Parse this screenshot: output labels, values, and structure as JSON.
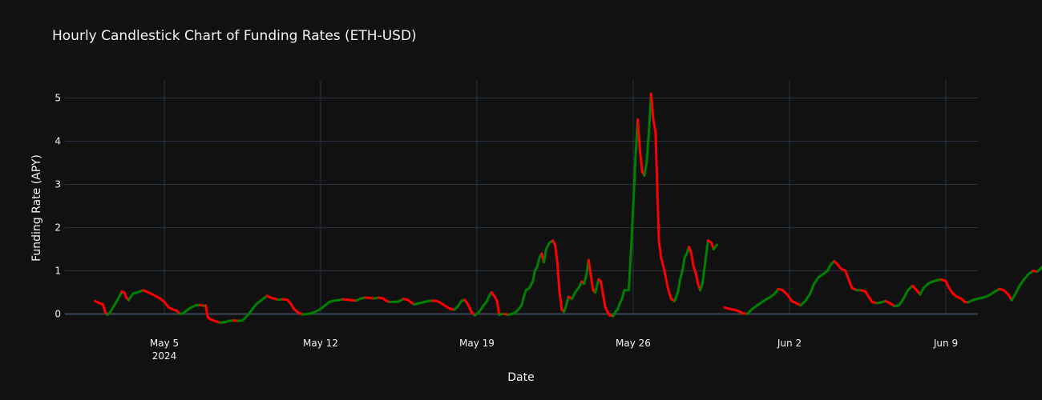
{
  "chart_data": {
    "type": "candlestick",
    "title": "Hourly Candlestick Chart of Funding Rates (ETH-USD)",
    "xlabel": "Date",
    "ylabel": "Funding Rate (APY)",
    "x_tick_labels": [
      "May 5",
      "May 12",
      "May 19",
      "May 26",
      "Jun 2",
      "Jun 9"
    ],
    "x_tick_days": [
      5,
      12,
      19,
      26,
      33,
      40
    ],
    "x_sub_label": "2024",
    "y_ticks": [
      0,
      1,
      2,
      3,
      4,
      5
    ],
    "xlim_days": [
      1.9,
      41.8
    ],
    "ylim": [
      -0.2,
      5.35
    ],
    "grid": true,
    "colors": {
      "increasing": "#008000",
      "decreasing": "#ff0000",
      "background": "#111111",
      "grid": "#283442"
    },
    "series": [
      {
        "points": [
          [
            1.9,
            0.3
          ],
          [
            2.1,
            0.25
          ],
          [
            2.25,
            0.22
          ],
          [
            2.35,
            0.05
          ],
          [
            2.45,
            -0.02
          ],
          [
            2.55,
            0.02
          ],
          [
            2.7,
            0.15
          ],
          [
            2.85,
            0.28
          ],
          [
            3.0,
            0.42
          ],
          [
            3.1,
            0.52
          ],
          [
            3.2,
            0.5
          ],
          [
            3.3,
            0.38
          ],
          [
            3.4,
            0.32
          ],
          [
            3.5,
            0.4
          ],
          [
            3.6,
            0.47
          ],
          [
            3.8,
            0.5
          ],
          [
            3.95,
            0.53
          ],
          [
            4.05,
            0.55
          ],
          [
            4.2,
            0.52
          ],
          [
            4.4,
            0.47
          ],
          [
            4.6,
            0.42
          ],
          [
            4.8,
            0.36
          ],
          [
            5.0,
            0.28
          ],
          [
            5.2,
            0.15
          ],
          [
            5.4,
            0.1
          ],
          [
            5.55,
            0.08
          ],
          [
            5.7,
            0.0
          ],
          [
            5.85,
            0.02
          ],
          [
            6.0,
            0.08
          ],
          [
            6.2,
            0.15
          ],
          [
            6.4,
            0.2
          ],
          [
            6.6,
            0.21
          ],
          [
            6.75,
            0.19
          ],
          [
            6.85,
            0.2
          ],
          [
            6.95,
            -0.08
          ],
          [
            7.1,
            -0.13
          ],
          [
            7.3,
            -0.17
          ],
          [
            7.5,
            -0.2
          ],
          [
            7.7,
            -0.19
          ],
          [
            7.9,
            -0.16
          ],
          [
            8.1,
            -0.15
          ],
          [
            8.3,
            -0.16
          ],
          [
            8.5,
            -0.15
          ],
          [
            8.7,
            -0.05
          ],
          [
            8.9,
            0.08
          ],
          [
            9.1,
            0.22
          ],
          [
            9.3,
            0.3
          ],
          [
            9.5,
            0.38
          ],
          [
            9.6,
            0.42
          ],
          [
            9.75,
            0.38
          ],
          [
            9.9,
            0.36
          ],
          [
            10.1,
            0.33
          ],
          [
            10.3,
            0.34
          ],
          [
            10.5,
            0.33
          ],
          [
            10.65,
            0.25
          ],
          [
            10.8,
            0.12
          ],
          [
            11.0,
            0.03
          ],
          [
            11.2,
            -0.01
          ],
          [
            11.4,
            0.0
          ],
          [
            11.6,
            0.02
          ],
          [
            11.8,
            0.06
          ],
          [
            12.0,
            0.12
          ],
          [
            12.2,
            0.2
          ],
          [
            12.4,
            0.28
          ],
          [
            12.6,
            0.31
          ],
          [
            12.8,
            0.32
          ],
          [
            13.0,
            0.34
          ],
          [
            13.2,
            0.33
          ],
          [
            13.4,
            0.32
          ],
          [
            13.6,
            0.31
          ],
          [
            13.8,
            0.36
          ],
          [
            14.0,
            0.38
          ],
          [
            14.2,
            0.37
          ],
          [
            14.4,
            0.36
          ],
          [
            14.6,
            0.38
          ],
          [
            14.8,
            0.36
          ],
          [
            14.95,
            0.3
          ],
          [
            15.1,
            0.28
          ],
          [
            15.3,
            0.28
          ],
          [
            15.5,
            0.29
          ],
          [
            15.7,
            0.35
          ],
          [
            15.9,
            0.33
          ],
          [
            16.05,
            0.27
          ],
          [
            16.2,
            0.22
          ],
          [
            16.4,
            0.25
          ],
          [
            16.6,
            0.27
          ],
          [
            16.8,
            0.3
          ],
          [
            17.0,
            0.31
          ],
          [
            17.2,
            0.3
          ],
          [
            17.4,
            0.25
          ],
          [
            17.6,
            0.18
          ],
          [
            17.8,
            0.12
          ],
          [
            18.0,
            0.1
          ],
          [
            18.15,
            0.18
          ],
          [
            18.3,
            0.3
          ],
          [
            18.45,
            0.33
          ],
          [
            18.6,
            0.22
          ],
          [
            18.75,
            0.05
          ],
          [
            18.9,
            -0.03
          ],
          [
            19.05,
            0.02
          ],
          [
            19.2,
            0.12
          ],
          [
            19.3,
            0.2
          ],
          [
            19.45,
            0.3
          ],
          [
            19.55,
            0.42
          ],
          [
            19.65,
            0.5
          ],
          [
            19.8,
            0.4
          ],
          [
            19.9,
            0.3
          ],
          [
            20.0,
            -0.02
          ],
          [
            20.1,
            0.0
          ],
          [
            20.25,
            0.0
          ],
          [
            20.4,
            -0.02
          ],
          [
            20.55,
            0.0
          ],
          [
            20.7,
            0.03
          ],
          [
            20.85,
            0.1
          ],
          [
            21.0,
            0.2
          ],
          [
            21.1,
            0.4
          ],
          [
            21.2,
            0.55
          ],
          [
            21.35,
            0.6
          ],
          [
            21.5,
            0.75
          ],
          [
            21.6,
            1.0
          ],
          [
            21.7,
            1.1
          ],
          [
            21.8,
            1.3
          ],
          [
            21.9,
            1.4
          ],
          [
            22.0,
            1.2
          ],
          [
            22.1,
            1.5
          ],
          [
            22.25,
            1.65
          ],
          [
            22.4,
            1.7
          ],
          [
            22.5,
            1.6
          ],
          [
            22.6,
            1.2
          ],
          [
            22.7,
            0.5
          ],
          [
            22.8,
            0.1
          ],
          [
            22.9,
            0.05
          ],
          [
            23.0,
            0.2
          ],
          [
            23.1,
            0.4
          ],
          [
            23.25,
            0.35
          ],
          [
            23.4,
            0.5
          ],
          [
            23.55,
            0.6
          ],
          [
            23.7,
            0.75
          ],
          [
            23.8,
            0.7
          ],
          [
            23.9,
            0.9
          ],
          [
            24.0,
            1.25
          ],
          [
            24.1,
            0.9
          ],
          [
            24.2,
            0.55
          ],
          [
            24.3,
            0.5
          ],
          [
            24.45,
            0.8
          ],
          [
            24.55,
            0.75
          ],
          [
            24.65,
            0.45
          ],
          [
            24.75,
            0.15
          ],
          [
            24.85,
            0.05
          ],
          [
            24.95,
            -0.03
          ],
          [
            25.1,
            -0.05
          ],
          [
            25.2,
            0.05
          ],
          [
            25.3,
            0.1
          ],
          [
            25.4,
            0.25
          ],
          [
            25.5,
            0.35
          ],
          [
            25.6,
            0.55
          ],
          [
            25.8,
            0.55
          ],
          [
            25.9,
            1.45
          ],
          [
            26.0,
            2.5
          ],
          [
            26.1,
            3.6
          ],
          [
            26.2,
            4.5
          ],
          [
            26.3,
            3.8
          ],
          [
            26.4,
            3.3
          ],
          [
            26.5,
            3.2
          ],
          [
            26.6,
            3.5
          ],
          [
            26.7,
            4.2
          ],
          [
            26.8,
            5.1
          ],
          [
            26.9,
            4.5
          ],
          [
            27.0,
            4.2
          ],
          [
            27.15,
            1.7
          ],
          [
            27.25,
            1.3
          ],
          [
            27.4,
            1.0
          ],
          [
            27.55,
            0.6
          ],
          [
            27.7,
            0.35
          ],
          [
            27.85,
            0.3
          ],
          [
            28.0,
            0.5
          ],
          [
            28.1,
            0.8
          ],
          [
            28.2,
            1.0
          ],
          [
            28.3,
            1.3
          ],
          [
            28.4,
            1.4
          ],
          [
            28.5,
            1.55
          ],
          [
            28.6,
            1.4
          ],
          [
            28.7,
            1.1
          ],
          [
            28.8,
            0.95
          ],
          [
            28.9,
            0.7
          ],
          [
            29.0,
            0.55
          ],
          [
            29.1,
            0.7
          ],
          [
            29.15,
            0.9
          ],
          [
            29.35,
            1.7
          ],
          [
            29.5,
            1.65
          ],
          [
            29.6,
            1.5
          ],
          [
            29.75,
            1.6
          ],
          [
            30.1,
            0.15
          ],
          [
            30.3,
            0.12
          ],
          [
            30.5,
            0.1
          ],
          [
            30.7,
            0.07
          ],
          [
            30.9,
            0.02
          ],
          [
            31.1,
            0.0
          ],
          [
            31.3,
            0.1
          ],
          [
            31.5,
            0.18
          ],
          [
            31.7,
            0.25
          ],
          [
            31.9,
            0.32
          ],
          [
            32.1,
            0.38
          ],
          [
            32.3,
            0.45
          ],
          [
            32.5,
            0.58
          ],
          [
            32.7,
            0.55
          ],
          [
            32.9,
            0.45
          ],
          [
            33.1,
            0.3
          ],
          [
            33.3,
            0.25
          ],
          [
            33.5,
            0.2
          ],
          [
            33.7,
            0.3
          ],
          [
            33.9,
            0.45
          ],
          [
            34.1,
            0.7
          ],
          [
            34.3,
            0.85
          ],
          [
            34.5,
            0.92
          ],
          [
            34.7,
            1.0
          ],
          [
            34.85,
            1.15
          ],
          [
            35.0,
            1.22
          ],
          [
            35.15,
            1.15
          ],
          [
            35.3,
            1.05
          ],
          [
            35.5,
            1.0
          ],
          [
            35.65,
            0.8
          ],
          [
            35.8,
            0.6
          ],
          [
            36.0,
            0.55
          ],
          [
            36.2,
            0.55
          ],
          [
            36.4,
            0.52
          ],
          [
            36.55,
            0.4
          ],
          [
            36.7,
            0.28
          ],
          [
            36.9,
            0.25
          ],
          [
            37.1,
            0.27
          ],
          [
            37.3,
            0.3
          ],
          [
            37.5,
            0.25
          ],
          [
            37.7,
            0.18
          ],
          [
            37.9,
            0.2
          ],
          [
            38.1,
            0.35
          ],
          [
            38.3,
            0.55
          ],
          [
            38.5,
            0.65
          ],
          [
            38.7,
            0.55
          ],
          [
            38.85,
            0.45
          ],
          [
            39.0,
            0.6
          ],
          [
            39.2,
            0.7
          ],
          [
            39.4,
            0.75
          ],
          [
            39.6,
            0.78
          ],
          [
            39.8,
            0.8
          ],
          [
            40.0,
            0.76
          ],
          [
            40.15,
            0.6
          ],
          [
            40.3,
            0.48
          ],
          [
            40.5,
            0.4
          ],
          [
            40.7,
            0.35
          ],
          [
            40.85,
            0.28
          ],
          [
            41.0,
            0.27
          ],
          [
            41.2,
            0.32
          ],
          [
            41.4,
            0.35
          ],
          [
            41.6,
            0.37
          ],
          [
            41.8,
            0.4
          ],
          [
            42.0,
            0.45
          ],
          [
            42.2,
            0.52
          ],
          [
            42.4,
            0.58
          ],
          [
            42.6,
            0.55
          ],
          [
            42.8,
            0.45
          ],
          [
            42.95,
            0.32
          ],
          [
            43.1,
            0.45
          ],
          [
            43.3,
            0.65
          ],
          [
            43.5,
            0.8
          ],
          [
            43.7,
            0.92
          ],
          [
            43.9,
            1.0
          ],
          [
            44.1,
            0.98
          ],
          [
            44.3,
            1.08
          ],
          [
            44.5,
            1.08
          ],
          [
            44.7,
            1.1
          ],
          [
            44.9,
            1.02
          ],
          [
            45.1,
            0.9
          ],
          [
            45.3,
            0.8
          ],
          [
            45.5,
            0.75
          ],
          [
            45.7,
            0.68
          ],
          [
            45.8,
            0.85
          ],
          [
            46.0,
            0.95
          ],
          [
            46.2,
            1.02
          ],
          [
            46.4,
            1.1
          ],
          [
            46.5,
            1.05
          ],
          [
            46.65,
            0.75
          ],
          [
            46.8,
            0.4
          ],
          [
            46.95,
            0.15
          ],
          [
            47.1,
            0.1
          ],
          [
            47.3,
            0.12
          ],
          [
            47.5,
            0.15
          ],
          [
            47.7,
            0.18
          ],
          [
            47.9,
            0.28
          ],
          [
            48.1,
            0.28
          ],
          [
            48.3,
            0.27
          ],
          [
            48.5,
            0.22
          ],
          [
            48.7,
            0.2
          ],
          [
            48.9,
            0.25
          ],
          [
            49.1,
            0.28
          ]
        ]
      }
    ]
  }
}
